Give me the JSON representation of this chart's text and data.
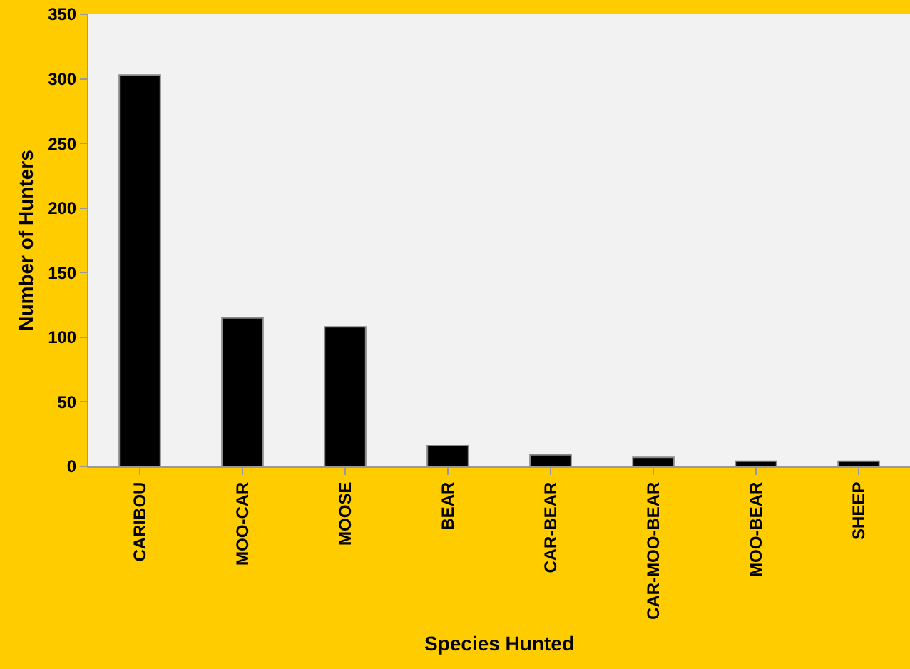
{
  "chart_data": {
    "type": "bar",
    "xlabel": "Species Hunted",
    "ylabel": "Number of Hunters",
    "categories": [
      "CARIBOU",
      "MOO-CAR",
      "MOOSE",
      "BEAR",
      "CAR-BEAR",
      "CAR-MOO-BEAR",
      "MOO-BEAR",
      "SHEEP"
    ],
    "values": [
      303,
      115,
      108,
      16,
      9,
      7,
      4,
      4
    ],
    "color": "#000000",
    "ylim": [
      0,
      350
    ],
    "yticks": [
      0,
      50,
      100,
      150,
      200,
      250,
      300,
      350
    ],
    "grid": false
  }
}
